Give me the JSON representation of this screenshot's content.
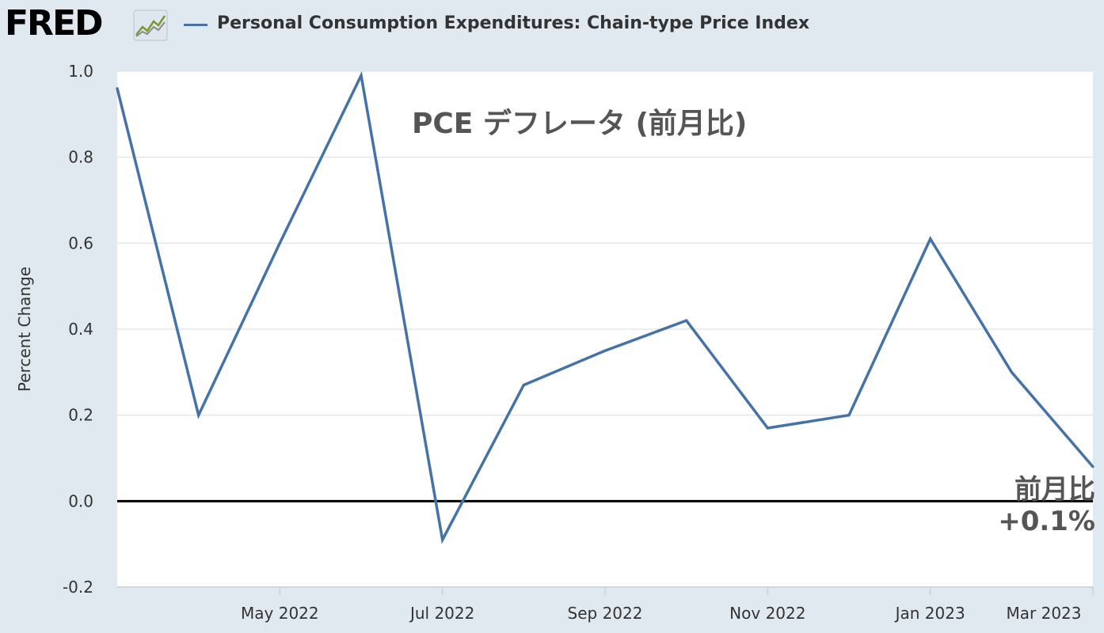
{
  "header": {
    "logo_text": "FRED",
    "series_title": "Personal Consumption Expenditures: Chain-type Price Index"
  },
  "colors": {
    "background": "#e1e9f0",
    "plot_background": "#ffffff",
    "series_line": "#4572a7",
    "zero_line": "#000000",
    "annotation_text": "#555555"
  },
  "chart_data": {
    "type": "line",
    "ylabel": "Percent Change",
    "ylim": [
      -0.2,
      1.0
    ],
    "yticks": [
      "1.0",
      "0.8",
      "0.6",
      "0.4",
      "0.2",
      "0.0",
      "-0.2"
    ],
    "xlim": [
      "2022-03",
      "2023-03"
    ],
    "xticks": [
      {
        "label": "May 2022",
        "x": "2022-05"
      },
      {
        "label": "Jul 2022",
        "x": "2022-07"
      },
      {
        "label": "Sep 2022",
        "x": "2022-09"
      },
      {
        "label": "Nov 2022",
        "x": "2022-11"
      },
      {
        "label": "Jan 2023",
        "x": "2023-01"
      },
      {
        "label": "Mar 2023",
        "x": "2023-03"
      }
    ],
    "grid": true,
    "series": [
      {
        "points": [
          {
            "x": "2022-03",
            "y": 0.96
          },
          {
            "x": "2022-04",
            "y": 0.2
          },
          {
            "x": "2022-05",
            "y": 0.6
          },
          {
            "x": "2022-06",
            "y": 0.99
          },
          {
            "x": "2022-07",
            "y": -0.09
          },
          {
            "x": "2022-08",
            "y": 0.27
          },
          {
            "x": "2022-09",
            "y": 0.35
          },
          {
            "x": "2022-10",
            "y": 0.42
          },
          {
            "x": "2022-11",
            "y": 0.17
          },
          {
            "x": "2022-12",
            "y": 0.2
          },
          {
            "x": "2023-01",
            "y": 0.61
          },
          {
            "x": "2023-02",
            "y": 0.3
          },
          {
            "x": "2023-03",
            "y": 0.08
          }
        ]
      }
    ],
    "annotations": [
      {
        "text": "PCE デフレータ (前月比)"
      },
      {
        "text": "前月比"
      },
      {
        "text": "+0.1%"
      }
    ]
  }
}
